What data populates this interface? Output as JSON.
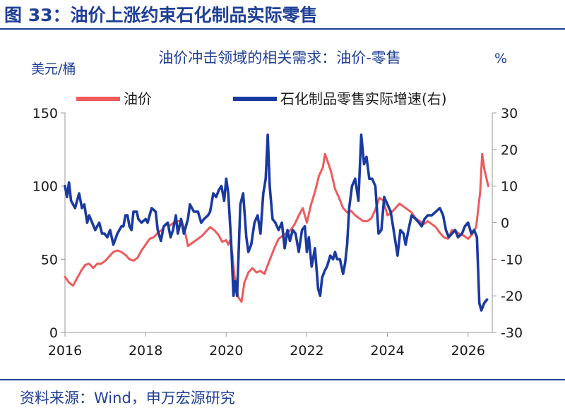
{
  "figure": {
    "title": "图 33：油价上涨约束石化制品实际零售",
    "source": "资料来源：Wind，申万宏源研究"
  },
  "chart_data": {
    "type": "line",
    "title": "油价冲击领域的相关需求：油价-零售",
    "y_left_unit": "美元/桶",
    "y_right_unit": "%",
    "ylim_left": [
      0,
      150
    ],
    "ylim_right": [
      -30,
      30
    ],
    "xlim": [
      2016,
      2026.6
    ],
    "x_ticks": [
      "2016",
      "2018",
      "2020",
      "2022",
      "2024",
      "2026"
    ],
    "y_left_ticks": [
      "0",
      "50",
      "100",
      "150"
    ],
    "y_right_ticks": [
      "-30",
      "-20",
      "-10",
      "0",
      "10",
      "20",
      "30"
    ],
    "grid": false,
    "legend_position": "top",
    "series": [
      {
        "name": "油价",
        "axis": "left",
        "color": "#ef5a5a",
        "points": [
          [
            2016.0,
            38
          ],
          [
            2016.1,
            34
          ],
          [
            2016.2,
            32
          ],
          [
            2016.3,
            37
          ],
          [
            2016.4,
            42
          ],
          [
            2016.5,
            46
          ],
          [
            2016.6,
            47
          ],
          [
            2016.7,
            44
          ],
          [
            2016.8,
            47
          ],
          [
            2016.9,
            47
          ],
          [
            2017.0,
            49
          ],
          [
            2017.1,
            52
          ],
          [
            2017.2,
            55
          ],
          [
            2017.3,
            56
          ],
          [
            2017.4,
            55
          ],
          [
            2017.5,
            53
          ],
          [
            2017.6,
            50
          ],
          [
            2017.7,
            49
          ],
          [
            2017.8,
            51
          ],
          [
            2017.9,
            56
          ],
          [
            2018.0,
            60
          ],
          [
            2018.1,
            64
          ],
          [
            2018.2,
            65
          ],
          [
            2018.3,
            68
          ],
          [
            2018.4,
            70
          ],
          [
            2018.5,
            74
          ],
          [
            2018.6,
            73
          ],
          [
            2018.7,
            75
          ],
          [
            2018.8,
            76
          ],
          [
            2018.9,
            76
          ],
          [
            2019.0,
            66
          ],
          [
            2019.05,
            59
          ],
          [
            2019.1,
            60
          ],
          [
            2019.2,
            62
          ],
          [
            2019.3,
            64
          ],
          [
            2019.4,
            66
          ],
          [
            2019.5,
            69
          ],
          [
            2019.6,
            72
          ],
          [
            2019.7,
            70
          ],
          [
            2019.8,
            67
          ],
          [
            2019.9,
            62
          ],
          [
            2020.0,
            63
          ],
          [
            2020.05,
            60
          ],
          [
            2020.1,
            63
          ],
          [
            2020.15,
            54
          ],
          [
            2020.2,
            40
          ],
          [
            2020.3,
            24
          ],
          [
            2020.38,
            21
          ],
          [
            2020.45,
            34
          ],
          [
            2020.55,
            41
          ],
          [
            2020.65,
            44
          ],
          [
            2020.75,
            41
          ],
          [
            2020.85,
            42
          ],
          [
            2020.95,
            40
          ],
          [
            2021.0,
            44
          ],
          [
            2021.1,
            51
          ],
          [
            2021.2,
            58
          ],
          [
            2021.3,
            64
          ],
          [
            2021.4,
            66
          ],
          [
            2021.5,
            68
          ],
          [
            2021.6,
            70
          ],
          [
            2021.7,
            74
          ],
          [
            2021.8,
            80
          ],
          [
            2021.9,
            85
          ],
          [
            2022.0,
            75
          ],
          [
            2022.1,
            87
          ],
          [
            2022.2,
            96
          ],
          [
            2022.3,
            107
          ],
          [
            2022.4,
            113
          ],
          [
            2022.45,
            122
          ],
          [
            2022.5,
            118
          ],
          [
            2022.6,
            110
          ],
          [
            2022.7,
            98
          ],
          [
            2022.8,
            92
          ],
          [
            2022.9,
            85
          ],
          [
            2023.0,
            82
          ],
          [
            2023.1,
            83
          ],
          [
            2023.2,
            80
          ],
          [
            2023.3,
            78
          ],
          [
            2023.4,
            76
          ],
          [
            2023.5,
            76
          ],
          [
            2023.6,
            78
          ],
          [
            2023.7,
            84
          ],
          [
            2023.8,
            92
          ],
          [
            2023.9,
            90
          ],
          [
            2024.0,
            80
          ],
          [
            2024.1,
            82
          ],
          [
            2024.2,
            85
          ],
          [
            2024.3,
            88
          ],
          [
            2024.4,
            86
          ],
          [
            2024.5,
            84
          ],
          [
            2024.6,
            82
          ],
          [
            2024.7,
            78
          ],
          [
            2024.8,
            76
          ],
          [
            2024.9,
            74
          ],
          [
            2025.0,
            76
          ],
          [
            2025.1,
            74
          ],
          [
            2025.2,
            72
          ],
          [
            2025.3,
            68
          ],
          [
            2025.4,
            65
          ],
          [
            2025.5,
            64
          ],
          [
            2025.6,
            70
          ],
          [
            2025.7,
            69
          ],
          [
            2025.8,
            67
          ],
          [
            2025.9,
            66
          ],
          [
            2026.0,
            64
          ],
          [
            2026.1,
            67
          ],
          [
            2026.2,
            72
          ],
          [
            2026.3,
            96
          ],
          [
            2026.35,
            122
          ],
          [
            2026.4,
            112
          ],
          [
            2026.5,
            100
          ]
        ]
      },
      {
        "name": "石化制品零售实际增速(右)",
        "axis": "right",
        "color": "#1a3aa0",
        "points": [
          [
            2016.0,
            10
          ],
          [
            2016.05,
            7
          ],
          [
            2016.1,
            11
          ],
          [
            2016.15,
            6
          ],
          [
            2016.25,
            4
          ],
          [
            2016.35,
            8
          ],
          [
            2016.42,
            4
          ],
          [
            2016.48,
            5
          ],
          [
            2016.55,
            0
          ],
          [
            2016.6,
            2
          ],
          [
            2016.75,
            -2
          ],
          [
            2016.85,
            0
          ],
          [
            2016.92,
            -3
          ],
          [
            2016.98,
            -3
          ],
          [
            2017.05,
            -4
          ],
          [
            2017.12,
            -2
          ],
          [
            2017.2,
            -6
          ],
          [
            2017.3,
            -3
          ],
          [
            2017.4,
            -1
          ],
          [
            2017.45,
            -1
          ],
          [
            2017.5,
            2
          ],
          [
            2017.55,
            2
          ],
          [
            2017.6,
            -1
          ],
          [
            2017.65,
            -2
          ],
          [
            2017.7,
            3
          ],
          [
            2017.78,
            3
          ],
          [
            2017.82,
            1
          ],
          [
            2017.9,
            0
          ],
          [
            2018.0,
            1
          ],
          [
            2018.05,
            0
          ],
          [
            2018.15,
            4
          ],
          [
            2018.25,
            3
          ],
          [
            2018.3,
            -2
          ],
          [
            2018.38,
            -5
          ],
          [
            2018.45,
            -1
          ],
          [
            2018.55,
            0
          ],
          [
            2018.62,
            -4
          ],
          [
            2018.68,
            -2
          ],
          [
            2018.75,
            2
          ],
          [
            2018.8,
            -3
          ],
          [
            2018.88,
            1
          ],
          [
            2018.95,
            -3
          ],
          [
            2019.05,
            1
          ],
          [
            2019.1,
            5
          ],
          [
            2019.2,
            3
          ],
          [
            2019.3,
            3
          ],
          [
            2019.38,
            0
          ],
          [
            2019.45,
            1
          ],
          [
            2019.55,
            2
          ],
          [
            2019.6,
            3
          ],
          [
            2019.68,
            8
          ],
          [
            2019.75,
            7
          ],
          [
            2019.82,
            9
          ],
          [
            2019.88,
            10
          ],
          [
            2019.95,
            6
          ],
          [
            2020.0,
            12
          ],
          [
            2020.05,
            8
          ],
          [
            2020.12,
            -5
          ],
          [
            2020.18,
            -20
          ],
          [
            2020.22,
            -16
          ],
          [
            2020.27,
            -20
          ],
          [
            2020.35,
            5
          ],
          [
            2020.42,
            8
          ],
          [
            2020.5,
            -4
          ],
          [
            2020.55,
            -8
          ],
          [
            2020.62,
            -6
          ],
          [
            2020.7,
            0
          ],
          [
            2020.78,
            2
          ],
          [
            2020.85,
            -3
          ],
          [
            2020.92,
            8
          ],
          [
            2020.98,
            12
          ],
          [
            2021.03,
            24
          ],
          [
            2021.08,
            10
          ],
          [
            2021.15,
            1
          ],
          [
            2021.22,
            0
          ],
          [
            2021.3,
            -2
          ],
          [
            2021.38,
            0
          ],
          [
            2021.45,
            -7
          ],
          [
            2021.52,
            -2
          ],
          [
            2021.58,
            -5
          ],
          [
            2021.65,
            -2
          ],
          [
            2021.72,
            -3
          ],
          [
            2021.8,
            -8
          ],
          [
            2021.88,
            -2
          ],
          [
            2021.95,
            -1
          ],
          [
            2022.0,
            -8
          ],
          [
            2022.05,
            -4
          ],
          [
            2022.12,
            -12
          ],
          [
            2022.2,
            -7
          ],
          [
            2022.28,
            -18
          ],
          [
            2022.33,
            -20
          ],
          [
            2022.38,
            -15
          ],
          [
            2022.45,
            -13
          ],
          [
            2022.5,
            -12
          ],
          [
            2022.58,
            -9
          ],
          [
            2022.65,
            -10
          ],
          [
            2022.7,
            -8
          ],
          [
            2022.75,
            -10
          ],
          [
            2022.82,
            -10
          ],
          [
            2022.9,
            -14
          ],
          [
            2022.95,
            -11
          ],
          [
            2023.0,
            -6
          ],
          [
            2023.05,
            4
          ],
          [
            2023.12,
            10
          ],
          [
            2023.2,
            12
          ],
          [
            2023.28,
            6
          ],
          [
            2023.35,
            24
          ],
          [
            2023.42,
            16
          ],
          [
            2023.48,
            18
          ],
          [
            2023.55,
            12
          ],
          [
            2023.62,
            12
          ],
          [
            2023.7,
            10
          ],
          [
            2023.78,
            -3
          ],
          [
            2023.85,
            -2
          ],
          [
            2023.92,
            7
          ],
          [
            2024.0,
            5
          ],
          [
            2024.08,
            3
          ],
          [
            2024.18,
            -4
          ],
          [
            2024.25,
            -9
          ],
          [
            2024.32,
            -2
          ],
          [
            2024.4,
            -3
          ],
          [
            2024.45,
            -6
          ],
          [
            2024.52,
            -2
          ],
          [
            2024.6,
            2
          ],
          [
            2024.7,
            1
          ],
          [
            2024.78,
            0
          ],
          [
            2024.85,
            -1
          ],
          [
            2024.92,
            1
          ],
          [
            2025.0,
            2
          ],
          [
            2025.1,
            2
          ],
          [
            2025.2,
            3
          ],
          [
            2025.3,
            4
          ],
          [
            2025.38,
            2
          ],
          [
            2025.45,
            -2
          ],
          [
            2025.52,
            -4
          ],
          [
            2025.6,
            -3
          ],
          [
            2025.68,
            -2
          ],
          [
            2025.75,
            -4
          ],
          [
            2025.85,
            -3
          ],
          [
            2025.92,
            -1
          ],
          [
            2026.0,
            0
          ],
          [
            2026.08,
            -3
          ],
          [
            2026.15,
            -2
          ],
          [
            2026.22,
            -4
          ],
          [
            2026.28,
            -22
          ],
          [
            2026.33,
            -24
          ],
          [
            2026.4,
            -22
          ],
          [
            2026.47,
            -21
          ]
        ]
      }
    ]
  }
}
